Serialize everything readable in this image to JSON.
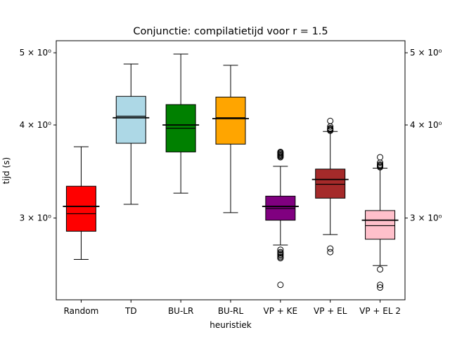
{
  "chart_data": {
    "type": "box",
    "title": "Conjunctie: compilatietijd voor r = 1.5",
    "xlabel": "heuristiek",
    "ylabel": "tijd (s)",
    "yscale": "log",
    "ylim": [
      2.33,
      5.19
    ],
    "y_ticks": [
      {
        "value": 3,
        "label": "3 × 10⁰"
      },
      {
        "value": 4,
        "label": "4 × 10⁰"
      },
      {
        "value": 5,
        "label": "5 × 10⁰"
      }
    ],
    "grid": false,
    "categories": [
      "Random",
      "TD",
      "BU-LR",
      "BU-RL",
      "VP + KE",
      "VP + EL",
      "VP + EL 2"
    ],
    "boxes": [
      {
        "name": "Random",
        "color": "#ff0000",
        "whislo": 2.64,
        "q1": 2.88,
        "median": 3.04,
        "q3": 3.31,
        "whishi": 3.74,
        "mean": 3.11,
        "fliers": []
      },
      {
        "name": "TD",
        "color": "#add8e6",
        "whislo": 3.13,
        "q1": 3.78,
        "median": 4.11,
        "q3": 4.37,
        "whishi": 4.83,
        "mean": 4.09,
        "fliers": []
      },
      {
        "name": "BU-LR",
        "color": "#008000",
        "whislo": 3.24,
        "q1": 3.68,
        "median": 3.96,
        "q3": 4.26,
        "whishi": 4.98,
        "mean": 4.0,
        "fliers": []
      },
      {
        "name": "BU-RL",
        "color": "#ffa500",
        "whislo": 3.05,
        "q1": 3.77,
        "median": 4.09,
        "q3": 4.36,
        "whishi": 4.81,
        "mean": 4.08,
        "fliers": []
      },
      {
        "name": "VP + KE",
        "color": "#800080",
        "whislo": 2.76,
        "q1": 2.98,
        "median": 3.09,
        "q3": 3.21,
        "whishi": 3.52,
        "mean": 3.11,
        "fliers": [
          3.62,
          3.63,
          3.64,
          3.65,
          3.66,
          3.67,
          3.68,
          2.72,
          2.7,
          2.69,
          2.68,
          2.67,
          2.66,
          2.65,
          2.44
        ]
      },
      {
        "name": "VP + EL",
        "color": "#a52a2a",
        "whislo": 2.85,
        "q1": 3.19,
        "median": 3.33,
        "q3": 3.49,
        "whishi": 3.92,
        "mean": 3.38,
        "fliers": [
          3.93,
          3.94,
          3.95,
          3.96,
          3.98,
          4.05,
          2.73,
          2.7
        ]
      },
      {
        "name": "VP + EL 2",
        "color": "#ffc0cb",
        "whislo": 2.59,
        "q1": 2.81,
        "median": 2.93,
        "q3": 3.07,
        "whishi": 3.5,
        "mean": 2.98,
        "fliers": [
          3.51,
          3.52,
          3.53,
          3.54,
          3.56,
          3.62,
          2.56,
          2.44,
          2.42
        ]
      }
    ]
  }
}
